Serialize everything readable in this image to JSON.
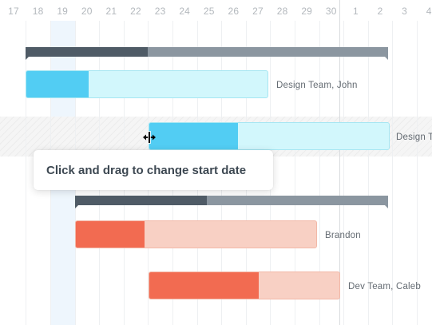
{
  "timeline": {
    "days": [
      "17",
      "18",
      "19",
      "20",
      "21",
      "22",
      "23",
      "24",
      "25",
      "26",
      "27",
      "28",
      "29",
      "30",
      "1",
      "2",
      "3",
      "4"
    ]
  },
  "tasks": [
    {
      "id": "summary-1",
      "kind": "summary",
      "progress": 0.34
    },
    {
      "id": "task-1",
      "kind": "task",
      "color": "blue",
      "progress": 0.26,
      "label": "Design Team, John"
    },
    {
      "id": "task-2",
      "kind": "task",
      "color": "blue",
      "progress": 0.37,
      "label": "Design T",
      "state": "being-dragged"
    },
    {
      "id": "summary-2",
      "kind": "summary",
      "progress": 0.42
    },
    {
      "id": "task-3",
      "kind": "task",
      "color": "red",
      "progress": 0.28,
      "label": "Brandon"
    },
    {
      "id": "task-4",
      "kind": "task",
      "color": "red",
      "progress": 0.65,
      "label": "Dev Team, Caleb"
    }
  ],
  "tooltip": {
    "text": "Click and drag to change start date"
  },
  "colors": {
    "summary_done": "#4f5b66",
    "summary_rest": "#8b96a0",
    "blue_fill": "#52cdf3",
    "blue_rest": "#d2f7fc",
    "red_fill": "#f26b51",
    "red_rest": "#f8d0c4",
    "today_column": "#eef6fd"
  },
  "icons": {
    "cursor": "resize-horizontal-cursor-icon"
  }
}
